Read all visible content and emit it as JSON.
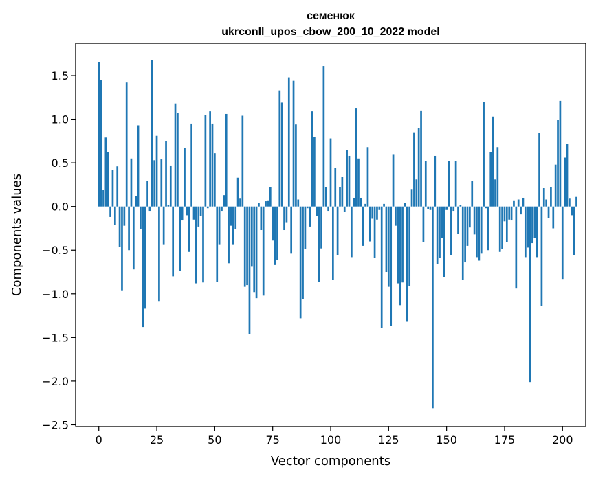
{
  "chart_data": {
    "type": "bar",
    "title": "семенюк",
    "subtitle": "ukrconll_upos_cbow_200_10_2022 model",
    "xlabel": "Vector components",
    "ylabel": "Components values",
    "xlim": [
      -10,
      210
    ],
    "ylim": [
      -2.52,
      1.87
    ],
    "xticks": [
      0,
      25,
      50,
      75,
      100,
      125,
      150,
      175,
      200
    ],
    "xtick_labels": [
      "0",
      "25",
      "50",
      "75",
      "100",
      "125",
      "150",
      "175",
      "200"
    ],
    "yticks": [
      1.5,
      1.0,
      0.5,
      0.0,
      -0.5,
      -1.0,
      -1.5,
      -2.0,
      -2.5
    ],
    "ytick_labels": [
      "1.5",
      "1.0",
      "0.5",
      "0.0",
      "−0.5",
      "−1.0",
      "−1.5",
      "−2.0",
      "−2.5"
    ],
    "bar_color": "#1f77b4",
    "values": [
      1.65,
      1.45,
      0.19,
      0.79,
      0.62,
      -0.12,
      0.42,
      -0.21,
      0.46,
      -0.46,
      -0.96,
      -0.22,
      1.42,
      -0.5,
      0.55,
      -0.72,
      0.12,
      0.93,
      -0.26,
      -1.38,
      -1.17,
      0.29,
      -0.05,
      1.68,
      0.53,
      0.81,
      -1.09,
      0.54,
      -0.44,
      0.75,
      0.02,
      0.47,
      -0.8,
      1.18,
      1.07,
      -0.74,
      -0.16,
      0.67,
      -0.1,
      -0.52,
      0.95,
      -0.15,
      -0.88,
      -0.23,
      -0.11,
      -0.87,
      1.05,
      -0.02,
      1.09,
      0.95,
      0.61,
      -0.86,
      -0.44,
      -0.05,
      0.13,
      1.06,
      -0.65,
      -0.22,
      -0.44,
      -0.26,
      0.33,
      0.09,
      1.04,
      -0.92,
      -0.9,
      -1.46,
      -0.69,
      -0.98,
      -1.05,
      0.04,
      -0.27,
      -1.02,
      0.06,
      0.07,
      0.22,
      -0.39,
      -0.67,
      -0.61,
      1.33,
      1.19,
      -0.27,
      -0.18,
      1.48,
      -0.54,
      1.44,
      0.94,
      0.08,
      -1.28,
      -1.06,
      -0.49,
      -0.02,
      -0.23,
      1.09,
      0.8,
      -0.11,
      -0.86,
      -0.48,
      1.61,
      0.22,
      -0.05,
      0.78,
      -0.84,
      0.44,
      -0.56,
      0.22,
      0.34,
      -0.06,
      0.65,
      0.58,
      -0.58,
      0.1,
      1.13,
      0.55,
      0.1,
      -0.45,
      0.03,
      0.68,
      -0.4,
      -0.14,
      -0.59,
      -0.15,
      -0.04,
      -1.39,
      0.03,
      -0.75,
      -0.92,
      -1.37,
      0.6,
      -0.22,
      -0.88,
      -1.13,
      -0.87,
      0.04,
      -1.32,
      -0.91,
      0.2,
      0.85,
      0.31,
      0.9,
      1.1,
      -0.41,
      0.52,
      -0.03,
      -0.04,
      -2.31,
      0.58,
      -0.66,
      -0.59,
      -0.36,
      -0.81,
      -0.04,
      0.52,
      -0.56,
      -0.05,
      0.52,
      -0.31,
      0.02,
      -0.84,
      -0.64,
      -0.45,
      -0.24,
      0.29,
      -0.32,
      -0.58,
      -0.62,
      -0.54,
      1.2,
      -0.02,
      -0.5,
      0.62,
      1.03,
      0.31,
      0.68,
      -0.52,
      -0.49,
      -0.17,
      -0.41,
      -0.15,
      -0.16,
      0.07,
      -0.94,
      0.08,
      -0.09,
      0.1,
      -0.58,
      -0.47,
      -2.01,
      -0.42,
      -0.36,
      -0.58,
      0.84,
      -1.14,
      0.21,
      0.08,
      -0.13,
      0.22,
      -0.25,
      0.48,
      0.99,
      1.21,
      -0.83,
      0.56,
      0.72,
      0.09,
      -0.1,
      -0.56,
      0.11
    ]
  }
}
